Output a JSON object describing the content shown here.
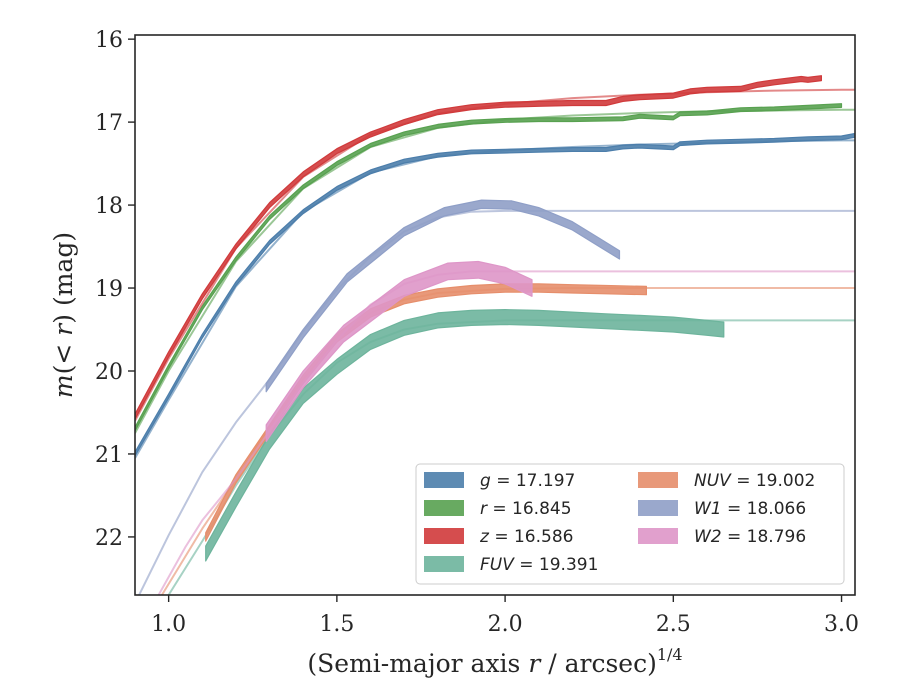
{
  "chart_data": {
    "type": "line",
    "xlabel": "(Semi-major axis r / arcsec)^{1/4}",
    "ylabel": "m(< r) (mag)",
    "xlim": [
      0.9,
      3.04
    ],
    "ylim": [
      22.7,
      15.95
    ],
    "y_inverted": true,
    "grid": false,
    "legend_position": "lower-right",
    "x_ticks": [
      1.0,
      1.5,
      2.0,
      2.5,
      3.0
    ],
    "x_tick_labels": [
      "1.0",
      "1.5",
      "2.0",
      "2.5",
      "3.0"
    ],
    "y_ticks": [
      16,
      17,
      18,
      19,
      20,
      21,
      22
    ],
    "y_tick_labels": [
      "16",
      "17",
      "18",
      "19",
      "20",
      "21",
      "22"
    ],
    "legend_columns": [
      [
        "g",
        "r",
        "z",
        "FUV"
      ],
      [
        "NUV",
        "W1",
        "W2"
      ]
    ],
    "series": [
      {
        "key": "g",
        "name": "g = 17.197",
        "color": "#4c7eab",
        "band_width": 0.045,
        "data_x": [
          0.9,
          1.0,
          1.1,
          1.2,
          1.3,
          1.4,
          1.5,
          1.6,
          1.7,
          1.8,
          1.9,
          2.0,
          2.1,
          2.2,
          2.3,
          2.35,
          2.4,
          2.5,
          2.52,
          2.6,
          2.7,
          2.8,
          2.9,
          3.0,
          3.04
        ],
        "data_y": [
          21.0,
          20.3,
          19.58,
          18.95,
          18.45,
          18.08,
          17.8,
          17.6,
          17.47,
          17.4,
          17.36,
          17.35,
          17.34,
          17.33,
          17.33,
          17.3,
          17.29,
          17.31,
          17.26,
          17.24,
          17.23,
          17.22,
          17.2,
          17.19,
          17.16
        ],
        "model_x": [
          0.9,
          1.0,
          1.2,
          1.4,
          1.6,
          1.8,
          2.0,
          2.2,
          2.4,
          2.6,
          2.8,
          3.0,
          3.04
        ],
        "model_y": [
          21.05,
          20.35,
          18.98,
          18.08,
          17.61,
          17.41,
          17.34,
          17.3,
          17.27,
          17.25,
          17.23,
          17.22,
          17.22
        ]
      },
      {
        "key": "r",
        "name": "r = 16.845",
        "color": "#58a150",
        "band_width": 0.045,
        "data_x": [
          0.9,
          1.0,
          1.1,
          1.2,
          1.3,
          1.4,
          1.5,
          1.6,
          1.7,
          1.8,
          1.9,
          2.0,
          2.1,
          2.2,
          2.35,
          2.4,
          2.5,
          2.52,
          2.6,
          2.7,
          2.8,
          2.9,
          3.0
        ],
        "data_y": [
          20.7,
          19.95,
          19.24,
          18.65,
          18.15,
          17.78,
          17.5,
          17.28,
          17.14,
          17.05,
          17.0,
          16.98,
          16.97,
          16.97,
          16.96,
          16.93,
          16.95,
          16.9,
          16.89,
          16.85,
          16.84,
          16.82,
          16.8
        ],
        "model_x": [
          0.9,
          1.0,
          1.2,
          1.4,
          1.6,
          1.8,
          2.0,
          2.2,
          2.4,
          2.6,
          2.8,
          3.0,
          3.04
        ],
        "model_y": [
          20.75,
          20.0,
          18.68,
          17.8,
          17.3,
          17.07,
          16.97,
          16.92,
          16.89,
          16.87,
          16.86,
          16.85,
          16.85
        ]
      },
      {
        "key": "z",
        "name": "z = 16.586",
        "color": "#d03a3b",
        "band_width": 0.06,
        "data_x": [
          0.9,
          1.0,
          1.1,
          1.2,
          1.3,
          1.4,
          1.5,
          1.6,
          1.7,
          1.8,
          1.9,
          2.0,
          2.1,
          2.2,
          2.3,
          2.35,
          2.4,
          2.5,
          2.55,
          2.6,
          2.7,
          2.75,
          2.8,
          2.88,
          2.9,
          2.94
        ],
        "data_y": [
          20.55,
          19.8,
          19.1,
          18.5,
          18.0,
          17.63,
          17.35,
          17.15,
          17.0,
          16.88,
          16.82,
          16.79,
          16.78,
          16.77,
          16.77,
          16.72,
          16.7,
          16.68,
          16.63,
          16.61,
          16.6,
          16.55,
          16.52,
          16.48,
          16.49,
          16.47
        ],
        "model_x": [
          0.9,
          1.0,
          1.2,
          1.4,
          1.6,
          1.8,
          2.0,
          2.2,
          2.4,
          2.6,
          2.8,
          3.0,
          3.04
        ],
        "model_y": [
          20.6,
          19.85,
          18.52,
          17.66,
          17.15,
          16.9,
          16.78,
          16.71,
          16.67,
          16.64,
          16.62,
          16.61,
          16.61
        ]
      },
      {
        "key": "FUV",
        "name": "FUV = 19.391",
        "color": "#6db49c",
        "band_width": 0.18,
        "data_x": [
          1.11,
          1.2,
          1.3,
          1.4,
          1.5,
          1.6,
          1.7,
          1.8,
          1.9,
          2.0,
          2.1,
          2.2,
          2.3,
          2.4,
          2.5,
          2.6,
          2.65
        ],
        "data_y": [
          22.2,
          21.55,
          20.85,
          20.3,
          19.95,
          19.65,
          19.48,
          19.39,
          19.36,
          19.35,
          19.36,
          19.38,
          19.4,
          19.42,
          19.44,
          19.48,
          19.5
        ],
        "model_x": [
          1.0,
          1.1,
          1.2,
          1.3,
          1.4,
          1.5,
          1.6,
          1.7,
          1.8,
          2.0,
          2.2,
          2.6,
          3.04
        ],
        "model_y": [
          22.7,
          22.05,
          21.38,
          20.78,
          20.28,
          19.9,
          19.65,
          19.5,
          19.43,
          19.39,
          19.39,
          19.39,
          19.39
        ]
      },
      {
        "key": "NUV",
        "name": "NUV = 19.002",
        "color": "#e68e6b",
        "band_width": 0.1,
        "data_x": [
          1.11,
          1.2,
          1.3,
          1.4,
          1.5,
          1.6,
          1.7,
          1.8,
          1.9,
          2.0,
          2.1,
          2.2,
          2.3,
          2.42
        ],
        "data_y": [
          22.0,
          21.3,
          20.7,
          20.1,
          19.6,
          19.3,
          19.14,
          19.06,
          19.02,
          19.0,
          19.0,
          19.01,
          19.02,
          19.03
        ],
        "model_x": [
          0.98,
          1.1,
          1.2,
          1.3,
          1.4,
          1.5,
          1.6,
          1.7,
          1.8,
          2.0,
          2.2,
          2.6,
          3.04
        ],
        "model_y": [
          22.7,
          21.9,
          21.3,
          20.68,
          20.1,
          19.62,
          19.3,
          19.14,
          19.06,
          19.01,
          19.0,
          19.0,
          19.0
        ]
      },
      {
        "key": "W1",
        "name": "W1 = 18.066",
        "color": "#8f9fc7",
        "band_width": 0.1,
        "data_x": [
          1.29,
          1.4,
          1.53,
          1.7,
          1.82,
          1.93,
          2.02,
          2.1,
          2.2,
          2.28,
          2.34
        ],
        "data_y": [
          20.2,
          19.55,
          18.88,
          18.32,
          18.08,
          17.99,
          18.0,
          18.08,
          18.25,
          18.45,
          18.6
        ],
        "model_x": [
          0.9,
          1.0,
          1.1,
          1.2,
          1.3,
          1.4,
          1.5,
          1.6,
          1.7,
          1.8,
          1.9,
          2.0,
          2.2,
          2.6,
          3.04
        ],
        "model_y": [
          22.8,
          21.98,
          21.22,
          20.62,
          20.1,
          19.52,
          19.02,
          18.62,
          18.32,
          18.15,
          18.08,
          18.07,
          18.07,
          18.07,
          18.07
        ]
      },
      {
        "key": "W2",
        "name": "W2 = 18.796",
        "color": "#de96c8",
        "band_width": 0.2,
        "data_x": [
          1.29,
          1.4,
          1.52,
          1.7,
          1.83,
          1.92,
          2.0,
          2.08
        ],
        "data_y": [
          20.75,
          20.1,
          19.55,
          19.0,
          18.8,
          18.78,
          18.85,
          19.0
        ],
        "model_x": [
          0.97,
          1.05,
          1.1,
          1.2,
          1.3,
          1.4,
          1.5,
          1.6,
          1.7,
          1.8,
          1.9,
          2.0,
          2.2,
          2.6,
          3.04
        ],
        "model_y": [
          22.7,
          22.12,
          21.8,
          21.3,
          20.72,
          20.15,
          19.63,
          19.2,
          18.95,
          18.84,
          18.8,
          18.8,
          18.8,
          18.8,
          18.8
        ]
      }
    ]
  }
}
